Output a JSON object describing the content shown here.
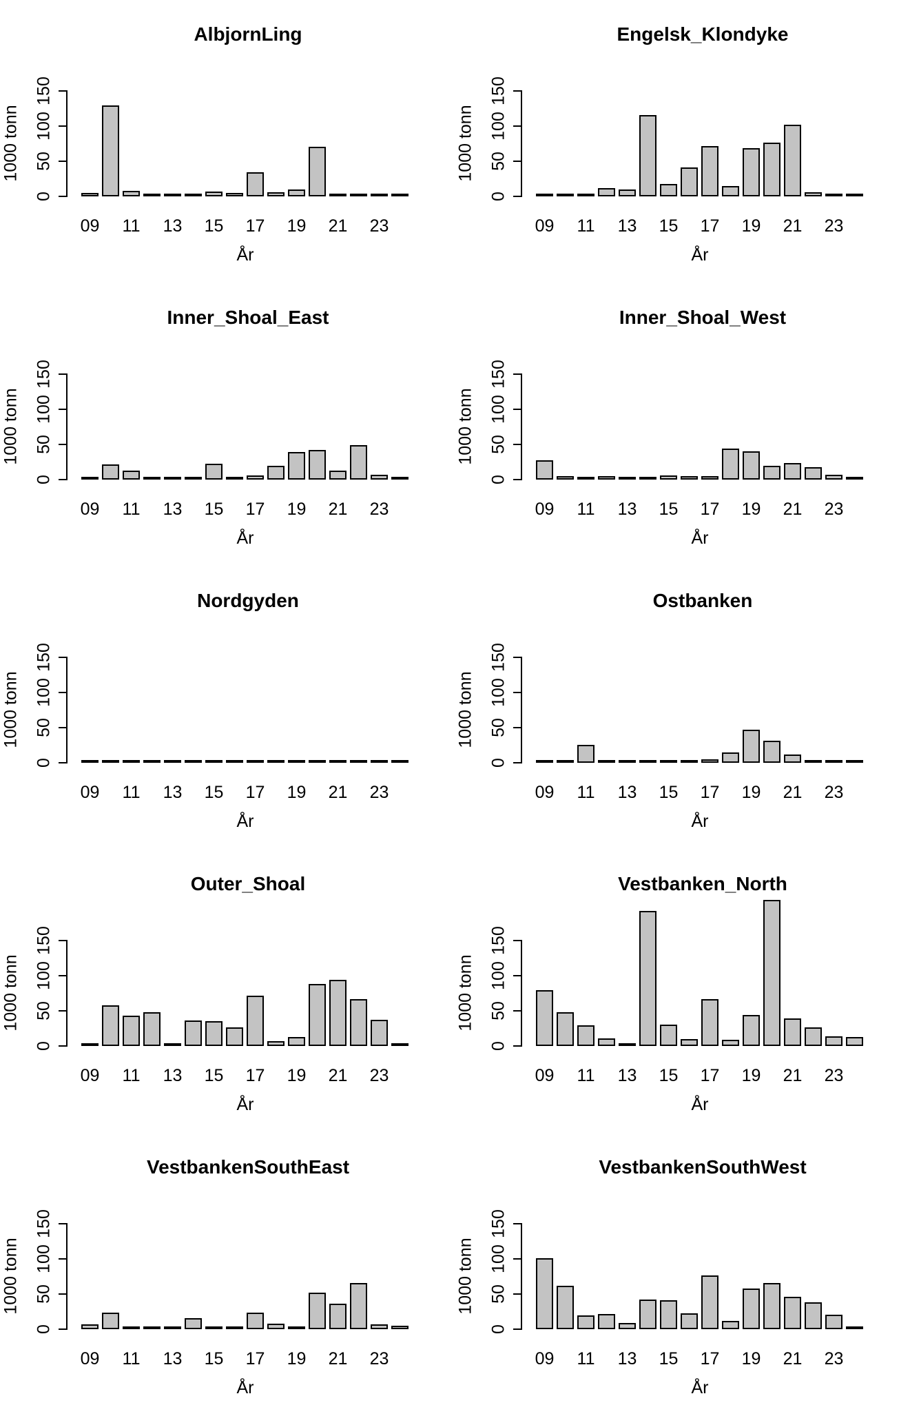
{
  "figure": {
    "ylabel": "1000 tonn",
    "xlabel": "År",
    "y_ticks": [
      "0",
      "50",
      "100",
      "150"
    ],
    "y_tick_values": [
      0,
      50,
      100,
      150
    ],
    "x_tick_labels": [
      "09",
      "11",
      "13",
      "15",
      "17",
      "19",
      "21",
      "23"
    ],
    "bar_fill": "#c3c3c3",
    "bar_border": "#000000",
    "grid": "off",
    "legend": "none"
  },
  "chart_data": [
    {
      "type": "bar",
      "title": "AlbjornLing",
      "xlabel": "År",
      "ylabel": "1000 tonn",
      "ylim": [
        0,
        150
      ],
      "categories": [
        "09",
        "10",
        "11",
        "12",
        "13",
        "14",
        "15",
        "16",
        "17",
        "18",
        "19",
        "20",
        "21",
        "22",
        "23",
        "24"
      ],
      "values": [
        5,
        129,
        8,
        2,
        1,
        3,
        7,
        5,
        34,
        6,
        10,
        71,
        3,
        3,
        3,
        1
      ]
    },
    {
      "type": "bar",
      "title": "Engelsk_Klondyke",
      "xlabel": "År",
      "ylabel": "1000 tonn",
      "ylim": [
        0,
        150
      ],
      "categories": [
        "09",
        "10",
        "11",
        "12",
        "13",
        "14",
        "15",
        "16",
        "17",
        "18",
        "19",
        "20",
        "21",
        "22",
        "23",
        "24"
      ],
      "values": [
        1,
        1,
        3,
        12,
        10,
        116,
        18,
        41,
        72,
        15,
        69,
        76,
        102,
        6,
        2,
        1
      ]
    },
    {
      "type": "bar",
      "title": "Inner_Shoal_East",
      "xlabel": "År",
      "ylabel": "1000 tonn",
      "ylim": [
        0,
        150
      ],
      "categories": [
        "09",
        "10",
        "11",
        "12",
        "13",
        "14",
        "15",
        "16",
        "17",
        "18",
        "19",
        "20",
        "21",
        "22",
        "23",
        "24"
      ],
      "values": [
        3,
        22,
        13,
        1,
        0.5,
        0.5,
        23,
        0.5,
        6,
        20,
        39,
        42,
        13,
        49,
        7,
        1
      ]
    },
    {
      "type": "bar",
      "title": "Inner_Shoal_West",
      "xlabel": "År",
      "ylabel": "1000 tonn",
      "ylim": [
        0,
        150
      ],
      "categories": [
        "09",
        "10",
        "11",
        "12",
        "13",
        "14",
        "15",
        "16",
        "17",
        "18",
        "19",
        "20",
        "21",
        "22",
        "23",
        "24"
      ],
      "values": [
        27,
        5,
        2,
        5,
        0.5,
        1,
        6,
        5,
        5,
        44,
        40,
        20,
        24,
        18,
        7,
        2
      ]
    },
    {
      "type": "bar",
      "title": "Nordgyden",
      "xlabel": "År",
      "ylabel": "1000 tonn",
      "ylim": [
        0,
        150
      ],
      "categories": [
        "09",
        "10",
        "11",
        "12",
        "13",
        "14",
        "15",
        "16",
        "17",
        "18",
        "19",
        "20",
        "21",
        "22",
        "23",
        "24"
      ],
      "values": [
        0.2,
        0.2,
        0.8,
        0.2,
        0.2,
        0.2,
        0.3,
        0.3,
        0.6,
        0.3,
        0.8,
        0.3,
        1,
        0.2,
        0.2,
        0.3
      ]
    },
    {
      "type": "bar",
      "title": "Ostbanken",
      "xlabel": "År",
      "ylabel": "1000 tonn",
      "ylim": [
        0,
        150
      ],
      "categories": [
        "09",
        "10",
        "11",
        "12",
        "13",
        "14",
        "15",
        "16",
        "17",
        "18",
        "19",
        "20",
        "21",
        "22",
        "23",
        "24"
      ],
      "values": [
        1,
        2,
        25,
        2,
        0.5,
        2,
        2,
        1,
        5,
        15,
        47,
        31,
        12,
        0.5,
        4,
        1
      ]
    },
    {
      "type": "bar",
      "title": "Outer_Shoal",
      "xlabel": "År",
      "ylabel": "1000 tonn",
      "ylim": [
        0,
        150
      ],
      "categories": [
        "09",
        "10",
        "11",
        "12",
        "13",
        "14",
        "15",
        "16",
        "17",
        "18",
        "19",
        "20",
        "21",
        "22",
        "23",
        "24"
      ],
      "values": [
        1,
        58,
        43,
        48,
        1,
        36,
        35,
        26,
        72,
        7,
        13,
        88,
        94,
        67,
        37,
        3
      ]
    },
    {
      "type": "bar",
      "title": "Vestbanken_North",
      "xlabel": "År",
      "ylabel": "1000 tonn",
      "ylim": [
        0,
        210
      ],
      "categories": [
        "09",
        "10",
        "11",
        "12",
        "13",
        "14",
        "15",
        "16",
        "17",
        "18",
        "19",
        "20",
        "21",
        "22",
        "23",
        "24"
      ],
      "values": [
        79,
        48,
        29,
        11,
        4,
        192,
        30,
        10,
        67,
        9,
        44,
        208,
        39,
        26,
        14,
        13
      ]
    },
    {
      "type": "bar",
      "title": "VestbankenSouthEast",
      "xlabel": "År",
      "ylabel": "1000 tonn",
      "ylim": [
        0,
        150
      ],
      "categories": [
        "09",
        "10",
        "11",
        "12",
        "13",
        "14",
        "15",
        "16",
        "17",
        "18",
        "19",
        "20",
        "21",
        "22",
        "23",
        "24"
      ],
      "values": [
        7,
        24,
        1,
        1,
        2,
        16,
        3,
        3,
        24,
        8,
        3,
        52,
        36,
        66,
        7,
        5
      ]
    },
    {
      "type": "bar",
      "title": "VestbankenSouthWest",
      "xlabel": "År",
      "ylabel": "1000 tonn",
      "ylim": [
        0,
        150
      ],
      "categories": [
        "09",
        "10",
        "11",
        "12",
        "13",
        "14",
        "15",
        "16",
        "17",
        "18",
        "19",
        "20",
        "21",
        "22",
        "23",
        "24"
      ],
      "values": [
        101,
        62,
        20,
        22,
        9,
        42,
        41,
        23,
        76,
        12,
        58,
        66,
        46,
        38,
        21,
        2
      ]
    }
  ]
}
